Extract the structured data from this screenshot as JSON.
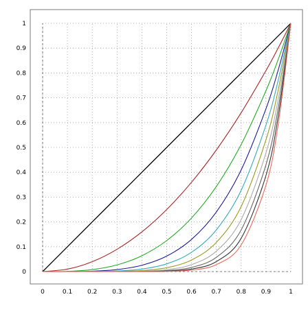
{
  "chart_data": {
    "type": "line",
    "title": "",
    "xlabel": "",
    "ylabel": "",
    "xlim": [
      0,
      1
    ],
    "ylim": [
      0,
      1
    ],
    "grid": true,
    "grid_style": "dotted",
    "legend": "none",
    "x_ticks": [
      "0",
      "0.1",
      "0.2",
      "0.3",
      "0.4",
      "0.5",
      "0.6",
      "0.7",
      "0.8",
      "0.9",
      "1"
    ],
    "y_ticks": [
      "0",
      "0.1",
      "0.2",
      "0.3",
      "0.4",
      "0.5",
      "0.6",
      "0.7",
      "0.8",
      "0.9",
      "1"
    ],
    "x_tick_values": [
      0,
      0.1,
      0.2,
      0.3,
      0.4,
      0.5,
      0.6,
      0.7,
      0.8,
      0.9,
      1
    ],
    "y_tick_values": [
      0,
      0.1,
      0.2,
      0.3,
      0.4,
      0.5,
      0.6,
      0.7,
      0.8,
      0.9,
      1
    ],
    "x": [
      0,
      0.1,
      0.2,
      0.3,
      0.4,
      0.5,
      0.6,
      0.7,
      0.8,
      0.9,
      0.95,
      1
    ],
    "series": [
      {
        "color": "#000000",
        "values": [
          0,
          0.1,
          0.2,
          0.3,
          0.4,
          0.5,
          0.6,
          0.7,
          0.8,
          0.9,
          0.95,
          1
        ]
      },
      {
        "color": "#aa2222",
        "values": [
          0,
          0.01,
          0.04,
          0.09,
          0.16,
          0.25,
          0.36,
          0.49,
          0.64,
          0.81,
          0.9025,
          1
        ]
      },
      {
        "color": "#22aa22",
        "values": [
          0,
          0.001,
          0.008,
          0.027,
          0.064,
          0.125,
          0.216,
          0.343,
          0.512,
          0.729,
          0.857,
          1
        ]
      },
      {
        "color": "#1a1a99",
        "values": [
          0,
          0.0001,
          0.0016,
          0.0081,
          0.0256,
          0.0625,
          0.1296,
          0.2401,
          0.4096,
          0.6561,
          0.8145,
          1
        ]
      },
      {
        "color": "#33aabb",
        "values": [
          0,
          0.0,
          0.0003,
          0.0024,
          0.0102,
          0.0313,
          0.0778,
          0.1681,
          0.3277,
          0.5905,
          0.7738,
          1
        ]
      },
      {
        "color": "#999922",
        "values": [
          0,
          0.0,
          0.0001,
          0.0007,
          0.0041,
          0.0156,
          0.0467,
          0.1176,
          0.2621,
          0.5314,
          0.7351,
          1
        ]
      },
      {
        "color": "#aaaaaa",
        "values": [
          0,
          0.0,
          0.0,
          0.0002,
          0.0016,
          0.0078,
          0.028,
          0.0824,
          0.2097,
          0.4783,
          0.6983,
          1
        ]
      },
      {
        "color": "#666666",
        "values": [
          0,
          0.0,
          0.0,
          0.0001,
          0.0007,
          0.0039,
          0.0168,
          0.0576,
          0.1678,
          0.4305,
          0.6634,
          1
        ]
      },
      {
        "color": "#333333",
        "values": [
          0,
          0.0,
          0.0,
          0.0,
          0.0003,
          0.002,
          0.0101,
          0.0404,
          0.1342,
          0.3874,
          0.6302,
          1
        ]
      },
      {
        "color": "#ee6655",
        "values": [
          0,
          0.0,
          0.0,
          0.0,
          0.0001,
          0.001,
          0.006,
          0.0282,
          0.1074,
          0.3487,
          0.5987,
          1
        ]
      }
    ]
  }
}
